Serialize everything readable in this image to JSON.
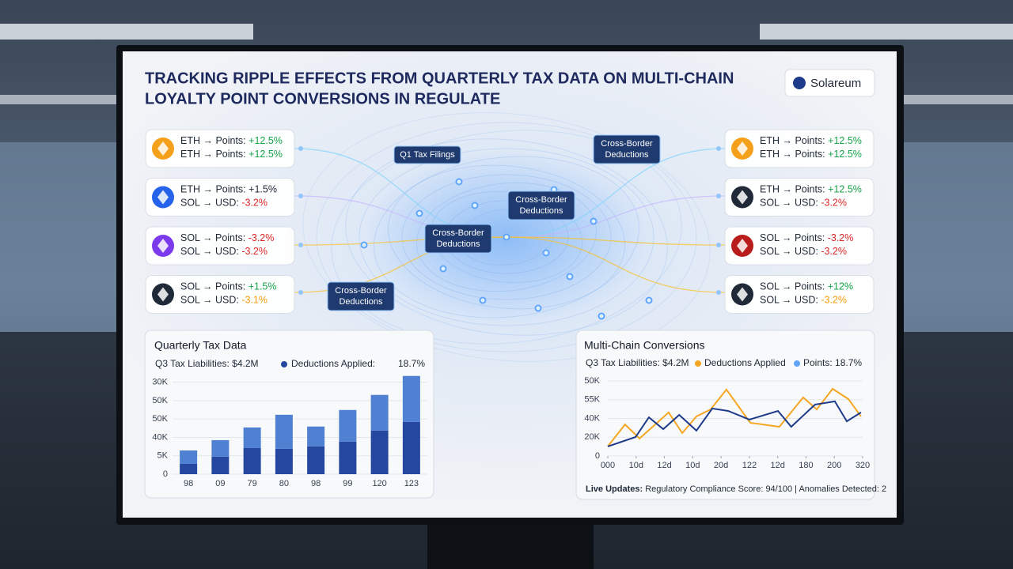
{
  "header": {
    "title_lines": [
      "TRACKING RIPPLE EFFECTS FROM QUARTERLY TAX DATA ON MULTI-CHAIN",
      "LOYALTY POINT CONVERSIONS IN REGULATE"
    ],
    "logo": "Solareum"
  },
  "cards_left": [
    {
      "icon_color": "#f5a01a",
      "rows": [
        {
          "label": "ETH → Points:",
          "change": "+12.5%",
          "color": "#16a34a"
        },
        {
          "label": "ETH → Points:",
          "change": "+12.5%",
          "color": "#16a34a"
        }
      ]
    },
    {
      "icon_color": "#2563eb",
      "rows": [
        {
          "label": "ETH → Points:",
          "change": "+1.5%",
          "color": "#1f2937"
        },
        {
          "label": "SOL → USD:",
          "change": "-3.2%",
          "color": "#dc2626"
        }
      ]
    },
    {
      "icon_color": "#7c3aed",
      "rows": [
        {
          "label": "SOL → Points:",
          "change": "-3.2%",
          "color": "#dc2626"
        },
        {
          "label": "SOL → USD:",
          "change": "-3.2%",
          "color": "#dc2626"
        }
      ]
    },
    {
      "icon_color": "#1f2937",
      "rows": [
        {
          "label": "SOL → Points:",
          "change": "+1.5%",
          "color": "#16a34a"
        },
        {
          "label": "SOL → USD:",
          "change": "-3.1%",
          "color": "#f59e0b"
        }
      ]
    }
  ],
  "cards_right": [
    {
      "icon_color": "#f5a01a",
      "rows": [
        {
          "label": "ETH → Points:",
          "change": "+12.5%",
          "color": "#16a34a"
        },
        {
          "label": "ETH → Points:",
          "change": "+12.5%",
          "color": "#16a34a"
        }
      ]
    },
    {
      "icon_color": "#1f2937",
      "rows": [
        {
          "label": "ETH → Points:",
          "change": "+12.5%",
          "color": "#16a34a"
        },
        {
          "label": "SOL → USD:",
          "change": "-3.2%",
          "color": "#dc2626"
        }
      ]
    },
    {
      "icon_color": "#b91c1c",
      "rows": [
        {
          "label": "SOL → Points:",
          "change": "-3.2%",
          "color": "#dc2626"
        },
        {
          "label": "SOL → USD:",
          "change": "-3.2%",
          "color": "#dc2626"
        }
      ]
    },
    {
      "icon_color": "#1f2937",
      "rows": [
        {
          "label": "SOL → Points:",
          "change": "+12%",
          "color": "#16a34a"
        },
        {
          "label": "SOL → USD:",
          "change": "-3.2%",
          "color": "#f59e0b"
        }
      ]
    }
  ],
  "network_labels": [
    {
      "lines": [
        "Q1 Tax Filings"
      ]
    },
    {
      "lines": [
        "Cross-Border",
        "Deductions"
      ]
    },
    {
      "lines": [
        "Cross-Border",
        "Deductions"
      ]
    },
    {
      "lines": [
        "Cross-Border",
        "Deductions"
      ]
    },
    {
      "lines": [
        "Cross-Border",
        "Deductions"
      ]
    }
  ],
  "chart_data": [
    {
      "type": "bar",
      "title": "Quarterly Tax Data",
      "subtitle": "Q3 Tax Liabilities: $4.2M",
      "legend_value": "18.7%",
      "categories": [
        "98",
        "09",
        "79",
        "80",
        "98",
        "99",
        "120",
        "123"
      ],
      "series": [
        {
          "name": "Deductions Applied:",
          "color": "#2547a0",
          "values": [
            5.6,
            9.5,
            14.2,
            13.8,
            15.1,
            17.7,
            23.7,
            28.4
          ]
        },
        {
          "color": "#4f80d2",
          "values": [
            7.3,
            9,
            11.2,
            18.5,
            10.8,
            17.2,
            19.4,
            25
          ]
        }
      ],
      "ylim": [
        0,
        55
      ],
      "yticks": [
        0,
        {
          "value": 10,
          "label": "5K"
        },
        {
          "value": 20,
          "label": "40K"
        },
        {
          "value": 30,
          "label": "50K"
        },
        {
          "value": 40,
          "label": "50K"
        },
        {
          "value": 50,
          "label": "30K"
        }
      ]
    },
    {
      "type": "line",
      "title": "Multi-Chain Conversions",
      "subtitle": "Q3 Tax Liabilities: $4.2M",
      "series": [
        {
          "name": "Deductions Applied",
          "color": "#f5a623",
          "x": [
            0,
            0.61,
            1.12,
            2.15,
            2.63,
            3.13,
            3.63,
            4.19,
            5.03,
            6.06,
            6.9,
            7.38,
            7.94,
            8.5,
            8.94
          ],
          "values": [
            5.1,
            16.8,
            9.3,
            23.2,
            12.2,
            21.1,
            24.8,
            35.4,
            17.7,
            15.6,
            31.2,
            24.8,
            35.8,
            30.3,
            21.1
          ]
        },
        {
          "name": "Points: 18.7%",
          "color": "#1e3a8a",
          "x": [
            0,
            0.98,
            1.45,
            1.96,
            2.52,
            3.13,
            3.69,
            4.25,
            5.0,
            6.01,
            6.48,
            7.32,
            8.02,
            8.44,
            8.94
          ],
          "values": [
            5.1,
            10.1,
            20.6,
            14.3,
            21.9,
            13.5,
            25.3,
            24,
            19.4,
            24,
            15.6,
            27.4,
            29.1,
            18.5,
            23.2
          ]
        }
      ],
      "xlim": [
        0,
        9
      ],
      "xticks": [
        {
          "value": 0,
          "label": "000"
        },
        {
          "value": 1,
          "label": "10d"
        },
        {
          "value": 2,
          "label": "12d"
        },
        {
          "value": 3,
          "label": "10d"
        },
        {
          "value": 4,
          "label": "20d"
        },
        {
          "value": 5,
          "label": "122"
        },
        {
          "value": 6,
          "label": "12d"
        },
        {
          "value": 7,
          "label": "180"
        },
        {
          "value": 8,
          "label": "200"
        },
        {
          "value": 9,
          "label": "320"
        }
      ],
      "ylim": [
        0,
        40
      ],
      "yticks": [
        0,
        {
          "value": 10,
          "label": "20K"
        },
        {
          "value": 20,
          "label": "40K"
        },
        {
          "value": 30,
          "label": "55K"
        },
        {
          "value": 40,
          "label": "50K"
        }
      ]
    }
  ],
  "footer": {
    "bold": "Live Updates:",
    "text": "Regulatory Compliance Score: 94/100 | Anomalies Detected: 2"
  }
}
